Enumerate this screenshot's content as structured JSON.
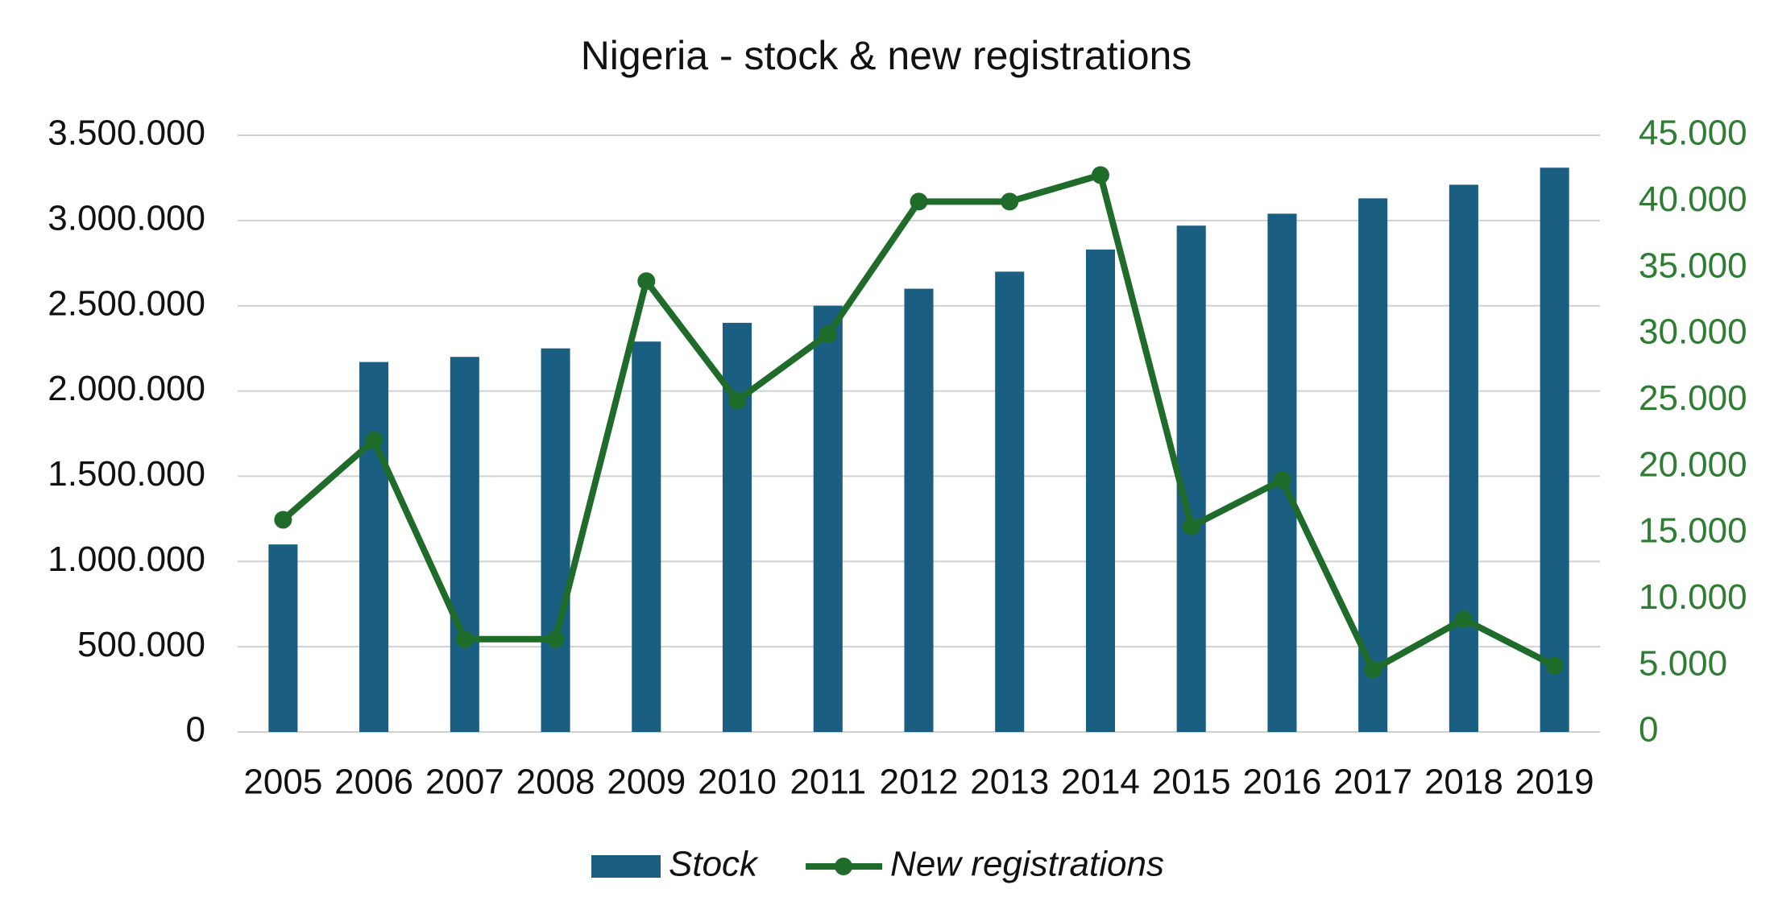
{
  "chart_data": {
    "type": "bar-line",
    "title": "Nigeria - stock & new registrations",
    "categories": [
      "2005",
      "2006",
      "2007",
      "2008",
      "2009",
      "2010",
      "2011",
      "2012",
      "2013",
      "2014",
      "2015",
      "2016",
      "2017",
      "2018",
      "2019"
    ],
    "series": [
      {
        "name": "Stock",
        "type": "bar",
        "color": "#1a5e82",
        "values": [
          1100000,
          2170000,
          2200000,
          2250000,
          2290000,
          2400000,
          2500000,
          2600000,
          2700000,
          2830000,
          2970000,
          3040000,
          3130000,
          3210000,
          3310000
        ]
      },
      {
        "name": "New registrations",
        "type": "line",
        "axis": "y2",
        "color": "#1e6b2a",
        "values": [
          16000,
          22000,
          7000,
          7000,
          34000,
          25000,
          30000,
          40000,
          40000,
          42000,
          15500,
          19000,
          4700,
          8500,
          5000
        ]
      }
    ],
    "ylim": [
      0,
      3500000
    ],
    "yticks": [
      0,
      {
        "value": 500000,
        "label": "500.000"
      },
      {
        "value": 1000000,
        "label": "1.000.000"
      },
      {
        "value": 1500000,
        "label": "1.500.000"
      },
      {
        "value": 2000000,
        "label": "2.000.000"
      },
      {
        "value": 2500000,
        "label": "2.500.000"
      },
      {
        "value": 3000000,
        "label": "3.000.000"
      },
      {
        "value": 3500000,
        "label": "3.500.000"
      }
    ],
    "y2lim": [
      0,
      45000
    ],
    "y2ticks": [
      0,
      {
        "value": 5000,
        "label": "5.000"
      },
      {
        "value": 10000,
        "label": "10.000"
      },
      {
        "value": 15000,
        "label": "15.000"
      },
      {
        "value": 20000,
        "label": "20.000"
      },
      {
        "value": 25000,
        "label": "25.000"
      },
      {
        "value": 30000,
        "label": "30.000"
      },
      {
        "value": 35000,
        "label": "35.000"
      },
      {
        "value": 40000,
        "label": "40.000"
      },
      {
        "value": 45000,
        "label": "45.000"
      }
    ],
    "y2_tick_color": "#2e7d32",
    "grid": true,
    "legend": "bottom"
  }
}
